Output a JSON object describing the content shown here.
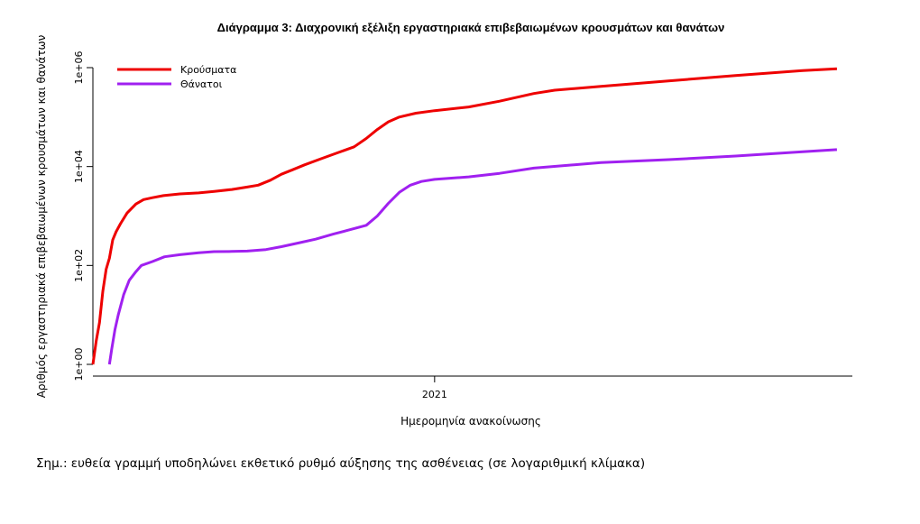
{
  "chart_data": {
    "type": "line",
    "title": "Διάγραμμα 3: Διαχρονική εξέλιξη εργαστηριακά επιβεβαιωμένων κρουσμάτων και θανάτων",
    "xlabel": "Ημερομηνία ανακοίνωσης",
    "ylabel": "Αριθμός εργαστηριακά επιβεβαιωμένων κρουσμάτων και θανάτων",
    "x_scale": "date",
    "xlim": [
      "2020-02-26",
      "2022-01-15"
    ],
    "x_ticks": [
      {
        "date": "2021-01-01",
        "label": "2021"
      }
    ],
    "y_scale": "log",
    "ylim": [
      1,
      1000000
    ],
    "y_ticks": [
      {
        "value": 1,
        "label": "1e+00"
      },
      {
        "value": 100,
        "label": "1e+02"
      },
      {
        "value": 10000,
        "label": "1e+04"
      },
      {
        "value": 1000000,
        "label": "1e+06"
      }
    ],
    "grid": false,
    "legend_position": "top-left",
    "series": [
      {
        "name": "Κρούσματα",
        "color": "#ee0000",
        "points": [
          [
            "2020-02-26",
            1
          ],
          [
            "2020-02-29",
            3
          ],
          [
            "2020-03-03",
            7
          ],
          [
            "2020-03-06",
            30
          ],
          [
            "2020-03-09",
            84
          ],
          [
            "2020-03-12",
            140
          ],
          [
            "2020-03-15",
            330
          ],
          [
            "2020-03-18",
            480
          ],
          [
            "2020-03-22",
            700
          ],
          [
            "2020-03-28",
            1150
          ],
          [
            "2020-04-05",
            1750
          ],
          [
            "2020-04-12",
            2150
          ],
          [
            "2020-04-20",
            2350
          ],
          [
            "2020-04-30",
            2580
          ],
          [
            "2020-05-15",
            2800
          ],
          [
            "2020-06-01",
            2930
          ],
          [
            "2020-06-15",
            3150
          ],
          [
            "2020-07-01",
            3430
          ],
          [
            "2020-07-15",
            3850
          ],
          [
            "2020-07-25",
            4200
          ],
          [
            "2020-08-05",
            5300
          ],
          [
            "2020-08-15",
            7000
          ],
          [
            "2020-08-25",
            8600
          ],
          [
            "2020-09-05",
            10800
          ],
          [
            "2020-09-20",
            14400
          ],
          [
            "2020-10-05",
            19000
          ],
          [
            "2020-10-20",
            25000
          ],
          [
            "2020-10-31",
            37000
          ],
          [
            "2020-11-10",
            56000
          ],
          [
            "2020-11-20",
            80000
          ],
          [
            "2020-11-30",
            100000
          ],
          [
            "2020-12-15",
            120000
          ],
          [
            "2021-01-01",
            135000
          ],
          [
            "2021-02-01",
            160000
          ],
          [
            "2021-03-01",
            210000
          ],
          [
            "2021-04-01",
            300000
          ],
          [
            "2021-04-20",
            350000
          ],
          [
            "2021-06-01",
            420000
          ],
          [
            "2021-08-01",
            540000
          ],
          [
            "2021-10-01",
            690000
          ],
          [
            "2021-12-01",
            870000
          ],
          [
            "2022-01-01",
            950000
          ]
        ]
      },
      {
        "name": "Θάνατοι",
        "color": "#a020f0",
        "points": [
          [
            "2020-03-12",
            1
          ],
          [
            "2020-03-14",
            2
          ],
          [
            "2020-03-17",
            5
          ],
          [
            "2020-03-20",
            10
          ],
          [
            "2020-03-25",
            26
          ],
          [
            "2020-03-30",
            50
          ],
          [
            "2020-04-05",
            75
          ],
          [
            "2020-04-10",
            100
          ],
          [
            "2020-04-20",
            120
          ],
          [
            "2020-05-01",
            150
          ],
          [
            "2020-05-15",
            165
          ],
          [
            "2020-06-01",
            180
          ],
          [
            "2020-06-15",
            190
          ],
          [
            "2020-07-01",
            192
          ],
          [
            "2020-07-15",
            195
          ],
          [
            "2020-08-01",
            210
          ],
          [
            "2020-08-15",
            240
          ],
          [
            "2020-09-01",
            290
          ],
          [
            "2020-09-15",
            340
          ],
          [
            "2020-10-01",
            430
          ],
          [
            "2020-10-15",
            520
          ],
          [
            "2020-10-31",
            650
          ],
          [
            "2020-11-10",
            1000
          ],
          [
            "2020-11-20",
            1800
          ],
          [
            "2020-11-30",
            3000
          ],
          [
            "2020-12-10",
            4200
          ],
          [
            "2020-12-20",
            5000
          ],
          [
            "2021-01-01",
            5500
          ],
          [
            "2021-02-01",
            6200
          ],
          [
            "2021-03-01",
            7300
          ],
          [
            "2021-04-01",
            9300
          ],
          [
            "2021-06-01",
            12000
          ],
          [
            "2021-08-01",
            13800
          ],
          [
            "2021-10-01",
            16300
          ],
          [
            "2021-12-01",
            20000
          ],
          [
            "2022-01-01",
            22000
          ]
        ]
      }
    ]
  },
  "note": "Σημ.: ευθεία γραμμή υποδηλώνει εκθετικό ρυθμό αύξησης της ασθένειας (σε λογαριθμική κλίμακα)"
}
